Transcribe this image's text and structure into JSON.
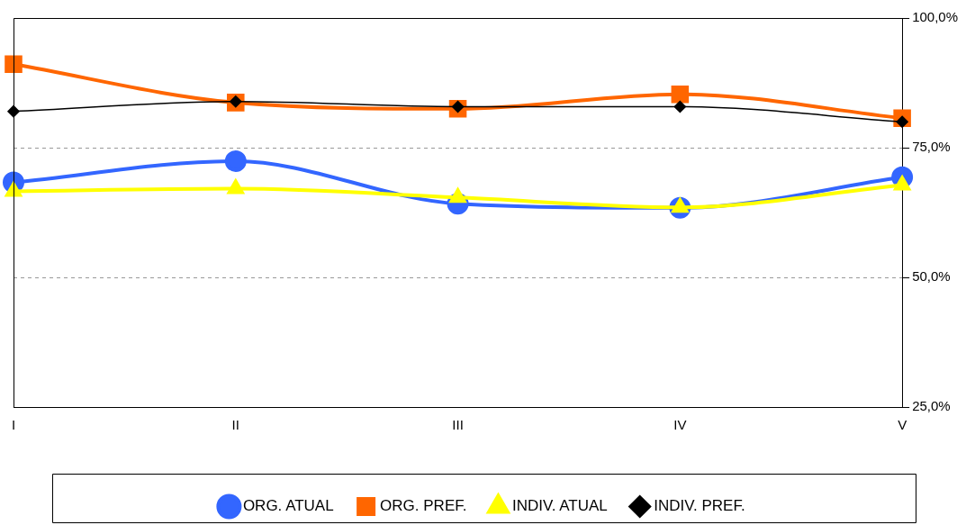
{
  "chart_data": {
    "type": "line",
    "categories": [
      "I",
      "II",
      "III",
      "IV",
      "V"
    ],
    "series": [
      {
        "name": "ORG. ATUAL",
        "color": "#3366ff",
        "marker": "circle",
        "values": [
          68.3,
          72.4,
          64.2,
          63.4,
          69.3
        ]
      },
      {
        "name": "ORG. PREF.",
        "color": "#ff6600",
        "marker": "square",
        "values": [
          91.1,
          83.7,
          82.5,
          85.3,
          80.7
        ]
      },
      {
        "name": "INDIV. ATUAL",
        "color": "#ffff00",
        "marker": "triangle",
        "values": [
          66.6,
          67.1,
          65.4,
          63.5,
          67.8
        ]
      },
      {
        "name": "INDIV. PREF.",
        "color": "#000000",
        "marker": "diamond",
        "values": [
          82.0,
          83.9,
          82.9,
          82.9,
          80.0
        ]
      }
    ],
    "ylim": [
      25,
      100
    ],
    "yticks": [
      {
        "value": 25,
        "label": "25,0%"
      },
      {
        "value": 50,
        "label": "50,0%"
      },
      {
        "value": 75,
        "label": "75,0%"
      },
      {
        "value": 100,
        "label": "100,0%"
      }
    ],
    "grid": "y",
    "legend": "bottom"
  }
}
